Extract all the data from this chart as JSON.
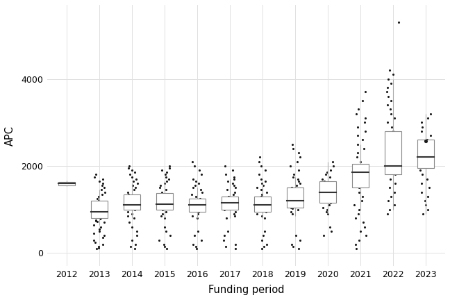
{
  "years": [
    2012,
    2013,
    2014,
    2015,
    2016,
    2017,
    2018,
    2019,
    2020,
    2021,
    2022,
    2023
  ],
  "boxes": {
    "2012": {
      "q1": 1560,
      "median": 1600,
      "q3": 1640,
      "whisker_low": 1540,
      "whisker_high": 1660
    },
    "2013": {
      "q1": 800,
      "median": 950,
      "q3": 1200,
      "whisker_low": 650,
      "whisker_high": 1450
    },
    "2014": {
      "q1": 1000,
      "median": 1100,
      "q3": 1350,
      "whisker_low": 800,
      "whisker_high": 1600
    },
    "2015": {
      "q1": 1000,
      "median": 1130,
      "q3": 1380,
      "whisker_low": 800,
      "whisker_high": 1650
    },
    "2016": {
      "q1": 950,
      "median": 1100,
      "q3": 1250,
      "whisker_low": 800,
      "whisker_high": 1500
    },
    "2017": {
      "q1": 1000,
      "median": 1150,
      "q3": 1300,
      "whisker_low": 800,
      "whisker_high": 1700
    },
    "2018": {
      "q1": 950,
      "median": 1100,
      "q3": 1300,
      "whisker_low": 800,
      "whisker_high": 1600
    },
    "2019": {
      "q1": 1050,
      "median": 1200,
      "q3": 1500,
      "whisker_low": 850,
      "whisker_high": 1750
    },
    "2020": {
      "q1": 1150,
      "median": 1400,
      "q3": 1650,
      "whisker_low": 900,
      "whisker_high": 2100
    },
    "2021": {
      "q1": 1500,
      "median": 1850,
      "q3": 2050,
      "whisker_low": 1000,
      "whisker_high": 2500
    },
    "2022": {
      "q1": 1800,
      "median": 2000,
      "q3": 2800,
      "whisker_low": 1000,
      "whisker_high": 4000
    },
    "2023": {
      "q1": 1950,
      "median": 2200,
      "q3": 2600,
      "whisker_low": 900,
      "whisker_high": 3200
    }
  },
  "mean_dots": {
    "2023": 2570
  },
  "jitter_data": {
    "2013": [
      700,
      720,
      740,
      760,
      780,
      800,
      820,
      840,
      860,
      880,
      900,
      920,
      940,
      960,
      980,
      1000,
      1020,
      1050,
      1080,
      1100,
      1130,
      1160,
      1200,
      1250,
      1300,
      1350,
      1400,
      1450,
      200,
      250,
      300,
      350,
      400,
      450,
      500,
      550,
      600,
      650,
      1500,
      1550,
      1600,
      1650,
      1700,
      1750,
      1800,
      100,
      120,
      150
    ],
    "2014": [
      800,
      850,
      900,
      950,
      1000,
      1020,
      1050,
      1080,
      1100,
      1120,
      1150,
      1180,
      1200,
      1250,
      1300,
      1350,
      1400,
      1450,
      1500,
      1550,
      1600,
      1650,
      1700,
      1750,
      1800,
      1850,
      1900,
      1950,
      2000,
      200,
      300,
      400,
      500,
      600,
      700,
      100,
      150
    ],
    "2015": [
      800,
      850,
      900,
      950,
      1000,
      1020,
      1050,
      1080,
      1100,
      1120,
      1150,
      1180,
      1200,
      1250,
      1300,
      1350,
      1400,
      1450,
      1500,
      1550,
      1600,
      1650,
      1700,
      1750,
      1800,
      1850,
      1900,
      1950,
      200,
      300,
      400,
      500,
      600,
      100,
      150,
      2000
    ],
    "2016": [
      800,
      850,
      900,
      950,
      1000,
      1020,
      1050,
      1080,
      1100,
      1120,
      1150,
      1180,
      1200,
      1250,
      1300,
      1350,
      1400,
      1450,
      1500,
      1550,
      1600,
      1650,
      1700,
      200,
      300,
      400,
      500,
      100,
      150,
      1800,
      1900,
      2000,
      2100
    ],
    "2017": [
      800,
      850,
      900,
      950,
      1000,
      1020,
      1050,
      1080,
      1100,
      1120,
      1150,
      1180,
      1200,
      1250,
      1300,
      1350,
      1400,
      1450,
      1500,
      1550,
      1600,
      1650,
      1700,
      1750,
      200,
      300,
      400,
      500,
      100,
      150,
      1800,
      1900,
      2000
    ],
    "2018": [
      800,
      850,
      900,
      950,
      1000,
      1020,
      1050,
      1080,
      1100,
      1120,
      1150,
      1180,
      1200,
      1250,
      1300,
      1350,
      1400,
      1450,
      1500,
      1550,
      1600,
      1650,
      1700,
      200,
      300,
      400,
      500,
      100,
      150,
      1800,
      1900,
      2000,
      2100,
      2200
    ],
    "2019": [
      900,
      950,
      1000,
      1020,
      1050,
      1080,
      1100,
      1120,
      1150,
      1180,
      1200,
      1250,
      1300,
      1350,
      1400,
      1450,
      1500,
      1550,
      1600,
      1650,
      1700,
      1750,
      1800,
      200,
      300,
      400,
      100,
      150,
      1900,
      2000,
      2100,
      2200,
      2300,
      2400,
      2500
    ],
    "2020": [
      900,
      950,
      1000,
      1050,
      1100,
      1150,
      1200,
      1250,
      1300,
      1350,
      1400,
      1450,
      1500,
      1550,
      1600,
      1650,
      1700,
      1750,
      1800,
      1850,
      1900,
      2000,
      2100,
      400,
      500,
      600
    ],
    "2021": [
      500,
      600,
      700,
      800,
      900,
      1000,
      1100,
      1200,
      1300,
      1400,
      1500,
      1600,
      1700,
      1800,
      1900,
      2000,
      2100,
      2200,
      2300,
      2400,
      2500,
      2600,
      2700,
      2800,
      2900,
      3000,
      3100,
      3200,
      3300,
      3500,
      3700,
      100,
      200,
      300,
      400
    ],
    "2022": [
      900,
      1000,
      1100,
      1200,
      1300,
      1400,
      1500,
      1600,
      1700,
      1800,
      1900,
      2000,
      2100,
      2200,
      2300,
      2400,
      2500,
      2600,
      2700,
      2800,
      2900,
      3000,
      3100,
      3200,
      3300,
      3400,
      3500,
      3600,
      3700,
      3800,
      3900,
      4000,
      4100,
      4200,
      5300
    ],
    "2023": [
      900,
      1000,
      1100,
      1200,
      1300,
      1400,
      1500,
      1600,
      1700,
      1800,
      1900,
      2000,
      2100,
      2200,
      2300,
      2400,
      2500,
      2600,
      2700,
      2800,
      2900,
      3000,
      3100,
      3200
    ]
  },
  "xlabel": "Funding period",
  "ylabel": "APC",
  "ylim": [
    -300,
    5700
  ],
  "yticks": [
    0,
    2000,
    4000
  ],
  "background_color": "#ffffff",
  "grid_color": "#e0e0e0",
  "box_edge_color": "#888888",
  "box_fill": "#ffffff",
  "median_color": "#333333",
  "whisker_color": "#aaaaaa",
  "dot_color": "#1a1a1a",
  "dot_size": 5,
  "box_width": 0.5,
  "figsize": [
    6.48,
    4.32
  ],
  "dpi": 100
}
